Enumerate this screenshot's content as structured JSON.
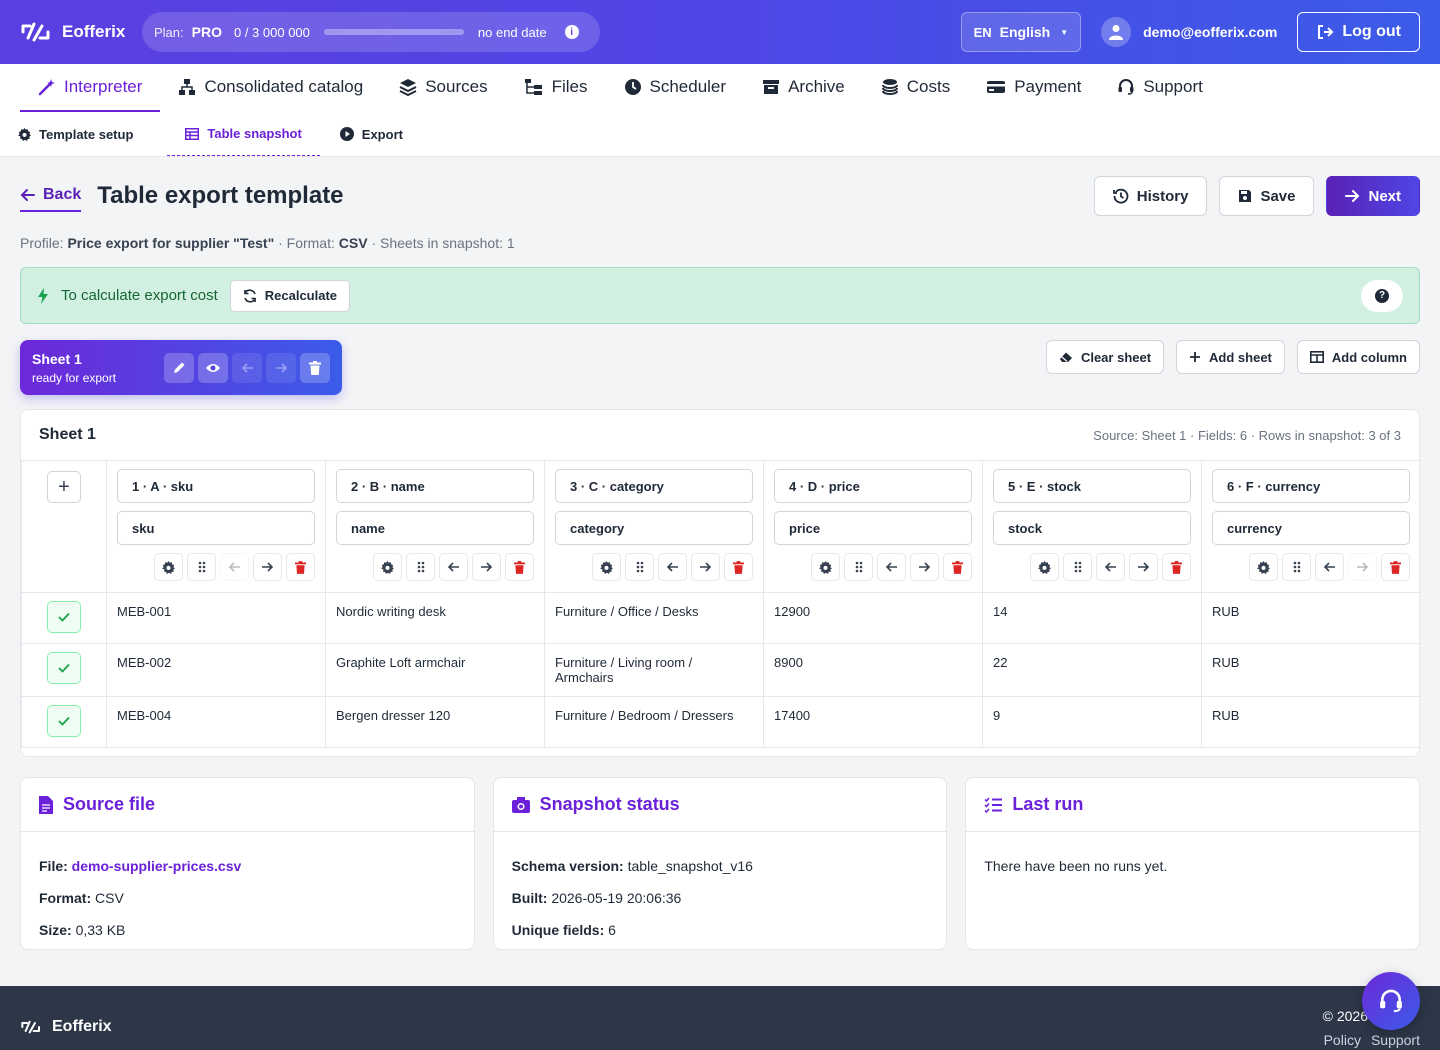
{
  "app": {
    "brand": "Eofferix"
  },
  "plan": {
    "label": "Plan:",
    "tier": "PRO",
    "usage": "0 / 3 000 000",
    "progress": 0.0,
    "end": "no end date"
  },
  "header": {
    "lang_code": "EN",
    "lang_name": "English",
    "user_email": "demo@eofferix.com",
    "logout_label": "Log out"
  },
  "nav": [
    {
      "label": "Interpreter",
      "icon": "magic-wand-icon",
      "active": true
    },
    {
      "label": "Consolidated catalog",
      "icon": "sitemap-icon"
    },
    {
      "label": "Sources",
      "icon": "layers-icon"
    },
    {
      "label": "Files",
      "icon": "folder-tree-icon"
    },
    {
      "label": "Scheduler",
      "icon": "clock-icon"
    },
    {
      "label": "Archive",
      "icon": "archive-icon"
    },
    {
      "label": "Costs",
      "icon": "coins-icon"
    },
    {
      "label": "Payment",
      "icon": "credit-card-icon"
    },
    {
      "label": "Support",
      "icon": "headset-icon"
    }
  ],
  "subnav": [
    {
      "label": "Template setup",
      "icon": "gear-icon"
    },
    {
      "label": "Table snapshot",
      "icon": "table-icon",
      "active": true
    },
    {
      "label": "Export",
      "icon": "play-circle-icon"
    }
  ],
  "page": {
    "back_label": "Back",
    "title": "Table export template",
    "history_label": "History",
    "save_label": "Save",
    "next_label": "Next",
    "meta": {
      "profile_label": "Profile:",
      "profile": "Price export for supplier \"Test\"",
      "format_label": " · Format:",
      "format": "CSV",
      "sheets": " · Sheets in snapshot: 1"
    }
  },
  "alert": {
    "text": "To calculate export cost",
    "recalc_label": "Recalculate",
    "help": "?"
  },
  "sheet": {
    "name": "Sheet 1",
    "status": "ready for export",
    "clear_label": "Clear sheet",
    "add_sheet_label": "Add sheet",
    "add_column_label": "Add column",
    "card_title": "Sheet 1",
    "card_summary": "Source: Sheet 1 · Fields: 6 · Rows in snapshot: 3 of 3"
  },
  "columns": [
    {
      "header": "1 · A · sku",
      "field": "sku"
    },
    {
      "header": "2 · B · name",
      "field": "name"
    },
    {
      "header": "3 · C · category",
      "field": "category"
    },
    {
      "header": "4 · D · price",
      "field": "price"
    },
    {
      "header": "5 · E · stock",
      "field": "stock"
    },
    {
      "header": "6 · F · currency",
      "field": "currency"
    }
  ],
  "rows": [
    [
      "MEB-001",
      "Nordic writing desk",
      "Furniture / Office / Desks",
      "12900",
      "14",
      "RUB"
    ],
    [
      "MEB-002",
      "Graphite Loft armchair",
      "Furniture / Living room / Armchairs",
      "8900",
      "22",
      "RUB"
    ],
    [
      "MEB-004",
      "Bergen dresser 120",
      "Furniture / Bedroom / Dressers",
      "17400",
      "9",
      "RUB"
    ]
  ],
  "panels": {
    "source": {
      "title": "Source file",
      "file_label": "File:",
      "file": "demo-supplier-prices.csv",
      "format_label": "Format:",
      "format": "CSV",
      "size_label": "Size:",
      "size": "0,33 KB"
    },
    "snapshot": {
      "title": "Snapshot status",
      "schema_label": "Schema version:",
      "schema": "table_snapshot_v16",
      "built_label": "Built:",
      "built": "2026-05-19 20:06:36",
      "fields_label": "Unique fields:",
      "fields": "6"
    },
    "lastrun": {
      "title": "Last run",
      "text": "There have been no runs yet."
    }
  },
  "footer": {
    "brand": "Eofferix",
    "copyright": "© 2026",
    "policy": "Policy",
    "support": "Support"
  },
  "colors": {
    "accent": "#6b21d9",
    "brand_gradient_start": "#5b3fe0",
    "brand_gradient_end": "#3b5ce8",
    "success": "#16a34a",
    "danger": "#dc2626",
    "footer": "#2d3748"
  }
}
